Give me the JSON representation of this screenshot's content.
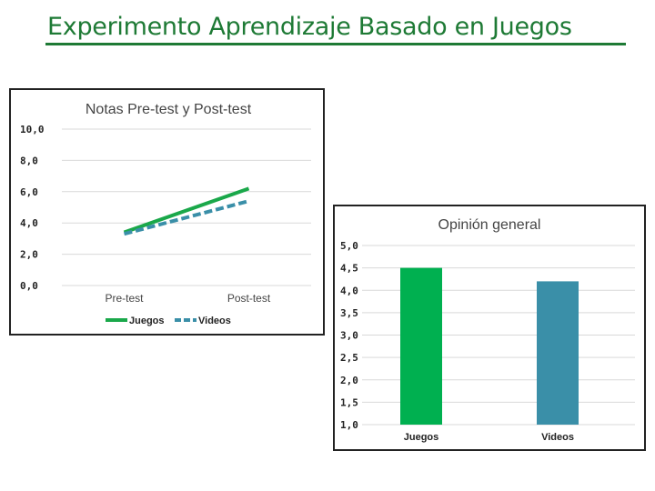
{
  "slide": {
    "title": "Experimento Aprendizaje Basado en Juegos"
  },
  "chart_data": [
    {
      "type": "line",
      "title": "Notas Pre-test y Post-test",
      "categories": [
        "Pre-test",
        "Post-test"
      ],
      "series": [
        {
          "name": "Juegos",
          "values": [
            3.4,
            6.2
          ],
          "color": "#1aa84a",
          "style": "solid"
        },
        {
          "name": "Videos",
          "values": [
            3.3,
            5.4
          ],
          "color": "#3a8fa8",
          "style": "dashed"
        }
      ],
      "yticks": [
        "10,0",
        "8,0",
        "6,0",
        "4,0",
        "2,0",
        "0,0"
      ],
      "ylim": [
        0,
        10
      ],
      "grid": true,
      "legend": "bottom"
    },
    {
      "type": "bar",
      "title": "Opinión general",
      "categories": [
        "Juegos",
        "Videos"
      ],
      "values": [
        4.5,
        4.2
      ],
      "colors": [
        "#00b050",
        "#3a8fa8"
      ],
      "yticks": [
        "5,0",
        "4,5",
        "4,0",
        "3,5",
        "3,0",
        "2,5",
        "2,0",
        "1,5",
        "1,0"
      ],
      "ylim": [
        1,
        5
      ],
      "grid": true,
      "legend": "none"
    }
  ]
}
